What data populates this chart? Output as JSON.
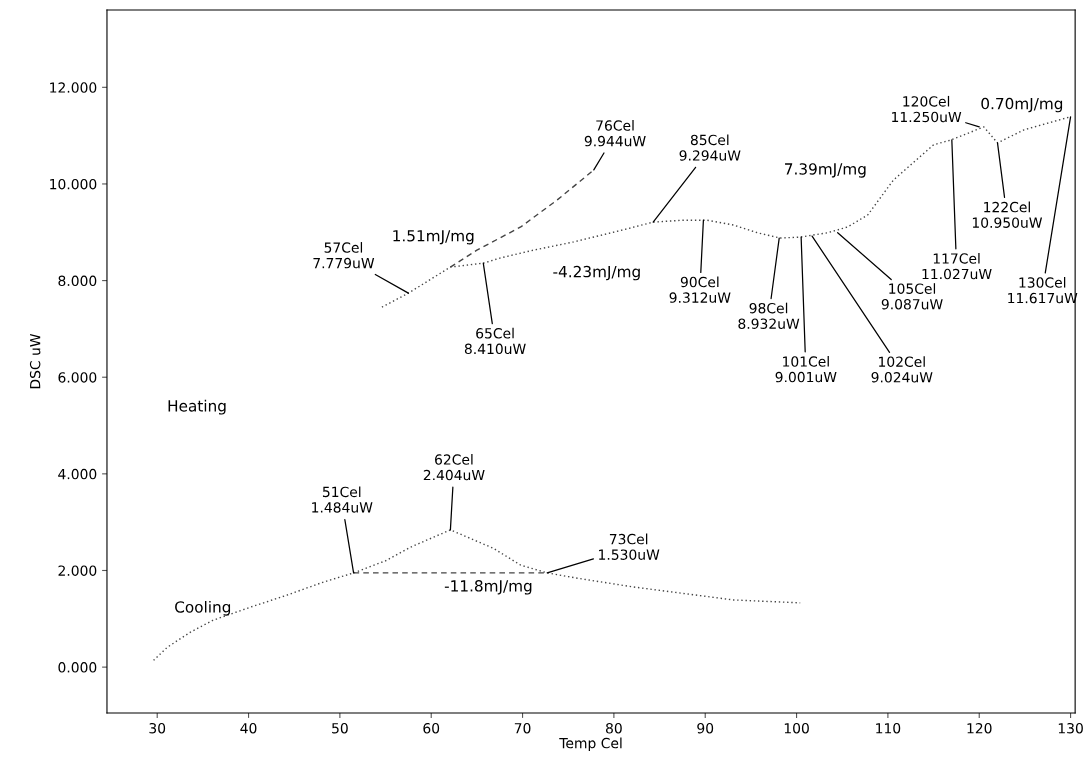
{
  "chart_data": {
    "type": "line",
    "xlabel": "Temp Cel",
    "ylabel": "DSC uW",
    "xlim": [
      24.5,
      130.5
    ],
    "ylim": [
      -0.95,
      13.6
    ],
    "xticks": [
      30,
      40,
      50,
      60,
      70,
      80,
      90,
      100,
      110,
      120,
      130
    ],
    "yticks": [
      {
        "value": 0,
        "label": "0.000"
      },
      {
        "value": 2,
        "label": "2.000"
      },
      {
        "value": 4,
        "label": "4.000"
      },
      {
        "value": 6,
        "label": "6.000"
      },
      {
        "value": 8,
        "label": "8.000"
      },
      {
        "value": 10,
        "label": "10.000"
      },
      {
        "value": 12,
        "label": "12.000"
      }
    ],
    "grid": false,
    "marker": "none",
    "series": [
      {
        "color": "#444444",
        "line_style": "dotted",
        "x": [
          54.6,
          57.5,
          62.1,
          65.7,
          67.6,
          71.2,
          75.6,
          81.0,
          84.3,
          87.6,
          90.2,
          93.1,
          95.7,
          98.2,
          100.4,
          103.4,
          105.6,
          107.8,
          110.6,
          115.0,
          116.9,
          120.5,
          122.0,
          124.9,
          130.0
        ],
        "values": [
          7.45,
          7.74,
          8.28,
          8.36,
          8.47,
          8.63,
          8.8,
          9.05,
          9.21,
          9.25,
          9.25,
          9.15,
          8.99,
          8.88,
          8.9,
          8.99,
          9.11,
          9.36,
          10.08,
          10.81,
          10.91,
          11.18,
          10.85,
          11.12,
          11.39
        ]
      },
      {
        "color": "#444444",
        "line_style": "dashed",
        "x": [
          62.1,
          65.0,
          69.8,
          73.8,
          77.8
        ],
        "values": [
          8.28,
          8.63,
          9.11,
          9.67,
          10.29
        ]
      },
      {
        "color": "#444444",
        "line_style": "dotted",
        "x": [
          29.6,
          31.1,
          33.6,
          36.1,
          40.2,
          44.2,
          48.2,
          51.5,
          55.0,
          57.7,
          62.1,
          66.8,
          69.8,
          72.7,
          76.0,
          82.1,
          93.1,
          100.4
        ],
        "values": [
          0.14,
          0.41,
          0.72,
          0.97,
          1.24,
          1.49,
          1.76,
          1.95,
          2.2,
          2.48,
          2.84,
          2.46,
          2.11,
          1.95,
          1.84,
          1.66,
          1.39,
          1.33
        ]
      },
      {
        "color": "#444444",
        "line_style": "dashed",
        "x": [
          51.5,
          72.7
        ],
        "values": [
          1.95,
          1.95
        ]
      }
    ],
    "annotations": [
      {
        "text": "57Cel\n7.779uW",
        "x": 57.5,
        "y": 7.74
      },
      {
        "text": "65Cel\n8.410uW",
        "x": 65.7,
        "y": 8.36
      },
      {
        "text": "76Cel\n9.944uW",
        "x": 77.8,
        "y": 10.29
      },
      {
        "text": "85Cel\n9.294uW",
        "x": 84.3,
        "y": 9.21
      },
      {
        "text": "90Cel\n9.312uW",
        "x": 89.8,
        "y": 9.25
      },
      {
        "text": "98Cel\n8.932uW",
        "x": 98.1,
        "y": 8.88
      },
      {
        "text": "101Cel\n9.001uW",
        "x": 100.5,
        "y": 8.9
      },
      {
        "text": "102Cel\n9.024uW",
        "x": 101.7,
        "y": 8.92
      },
      {
        "text": "105Cel\n9.087uW",
        "x": 104.5,
        "y": 8.99
      },
      {
        "text": "117Cel\n11.027uW",
        "x": 117.0,
        "y": 10.91
      },
      {
        "text": "120Cel\n11.250uW",
        "x": 120.0,
        "y": 11.18
      },
      {
        "text": "122Cel\n10.950uW",
        "x": 122.0,
        "y": 10.85
      },
      {
        "text": "130Cel\n11.617uW",
        "x": 130.0,
        "y": 11.39
      },
      {
        "text": "51Cel\n1.484uW",
        "x": 51.5,
        "y": 1.95
      },
      {
        "text": "62Cel\n2.404uW",
        "x": 62.1,
        "y": 2.84
      },
      {
        "text": "73Cel\n1.530uW",
        "x": 72.7,
        "y": 1.95
      },
      "1.51mJ/mg",
      "-4.23mJ/mg",
      "7.39mJ/mg",
      "0.70mJ/mg",
      "-11.8mJ/mg",
      "Heating",
      "Cooling"
    ]
  }
}
